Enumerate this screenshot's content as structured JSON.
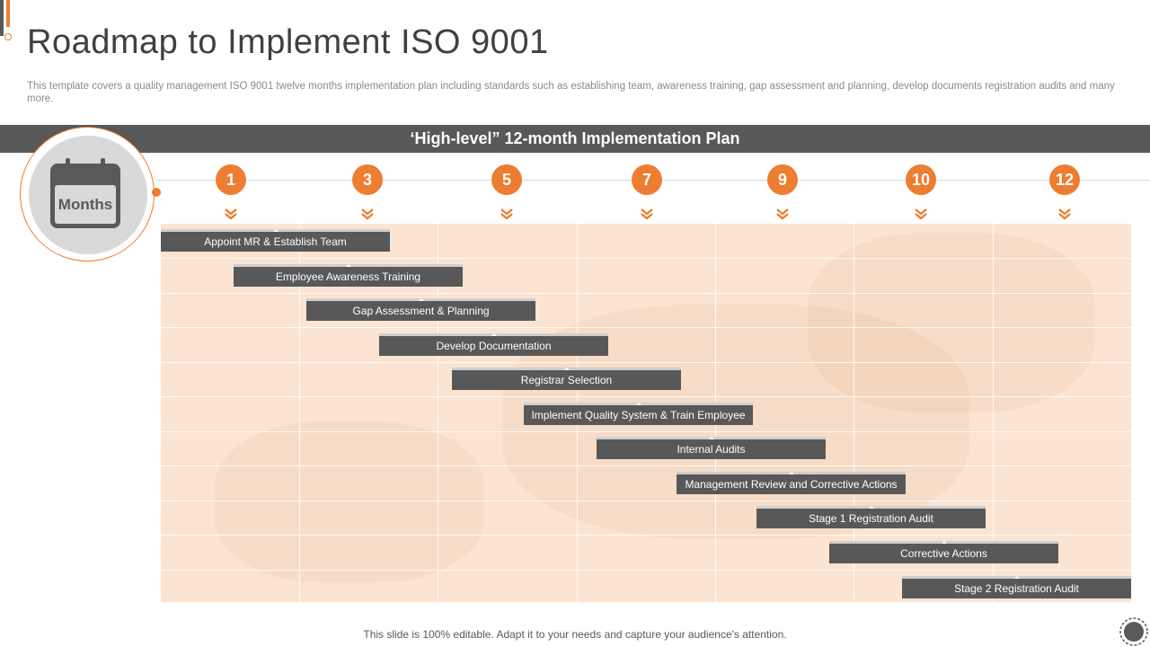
{
  "slide": {
    "title": "Roadmap to Implement ISO 9001",
    "description": "This template covers a quality management ISO 9001 twelve months implementation plan including standards such as establishing team, awareness training, gap assessment and planning, develop documents registration audits and many more.",
    "plan_header": "‘High-level” 12-month Implementation Plan",
    "months_label": "Months",
    "footer_note": "This slide is 100% editable. Adapt it to your needs and capture your audience's attention."
  },
  "month_markers": [
    "1",
    "3",
    "5",
    "7",
    "9",
    "10",
    "12"
  ],
  "tasks": [
    "Appoint MR & Establish Team",
    "Employee Awareness Training",
    "Gap Assessment & Planning",
    "Develop Documentation",
    "Registrar Selection",
    "Implement Quality System & Train Employee",
    "Internal Audits",
    "Management Review and Corrective Actions",
    "Stage 1 Registration Audit",
    "Corrective Actions",
    "Stage 2 Registration Audit"
  ],
  "icons": {
    "months": "calendar-icon",
    "marker_pointer": "chevron-down-icon",
    "navigation": "circle-nav-icon"
  },
  "colors": {
    "accent": "#ED7D31",
    "dark": "#585858",
    "grid_bg": "#fce4d2"
  }
}
